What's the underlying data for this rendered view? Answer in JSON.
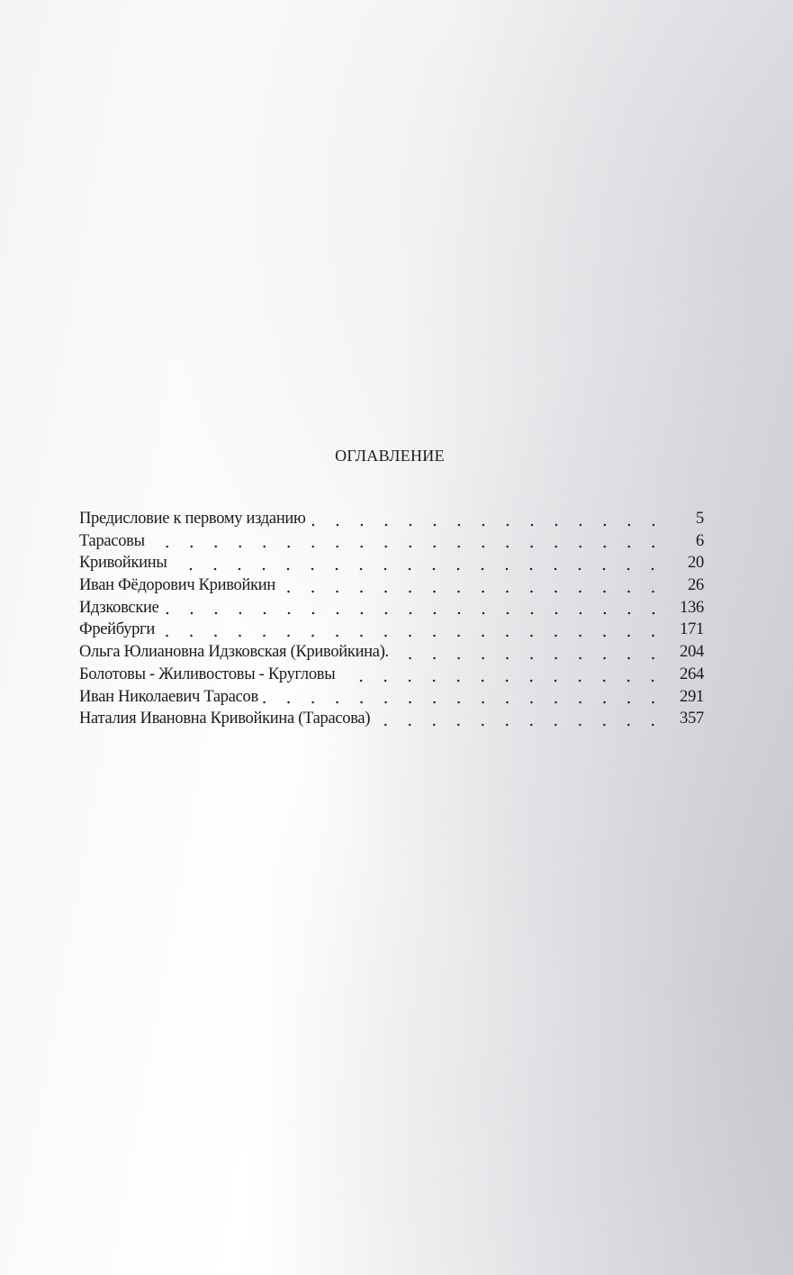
{
  "toc": {
    "title": "ОГЛАВЛЕНИЕ",
    "entries": [
      {
        "label": "Предисловие к первому изданию",
        "page": "5"
      },
      {
        "label": "Тарасовы",
        "page": "6"
      },
      {
        "label": "Кривойкины",
        "page": "20"
      },
      {
        "label": "Иван Фёдорович Кривойкин",
        "page": "26"
      },
      {
        "label": "Идзковские",
        "page": "136"
      },
      {
        "label": "Фрейбурги",
        "page": "171"
      },
      {
        "label": "Ольга Юлиановна Идзковская (Кривойкина).",
        "page": "204"
      },
      {
        "label": "Болотовы - Жиливостовы - Кругловы",
        "page": "264"
      },
      {
        "label": "Иван Николаевич Тарасов",
        "page": "291"
      },
      {
        "label": "Наталия Ивановна Кривойкина (Тарасова)",
        "page": "357"
      }
    ]
  }
}
